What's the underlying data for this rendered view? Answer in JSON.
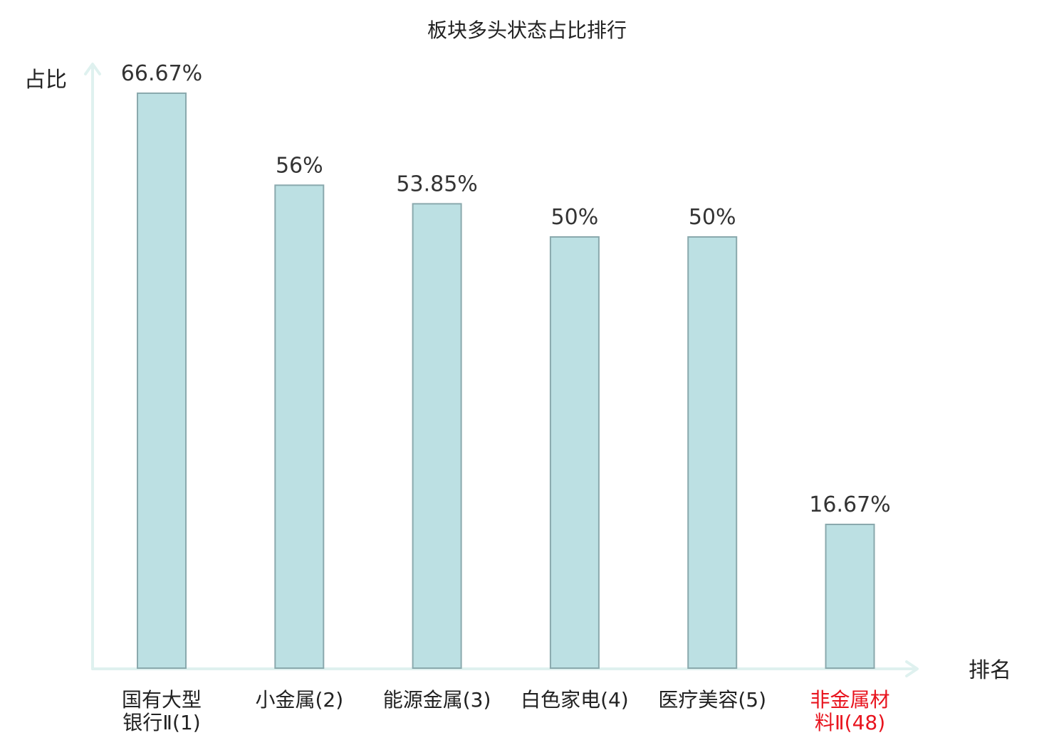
{
  "colors": {
    "bar_fill": "#bce0e3",
    "bar_stroke": "#8aa9ad",
    "axis": "#dff1ef",
    "text": "#222222",
    "highlight": "#e8141e"
  },
  "chart_data": {
    "type": "bar",
    "title": "板块多头状态占比排行",
    "ylabel": "占比",
    "xlabel": "排名",
    "ylim": [
      0,
      66.67
    ],
    "grid": false,
    "categories": [
      {
        "name_lines": [
          "国有大型",
          "银行Ⅱ"
        ],
        "rank": "(1)",
        "highlight": false
      },
      {
        "name_lines": [
          "小金属"
        ],
        "rank": "(2)",
        "highlight": false
      },
      {
        "name_lines": [
          "能源金属"
        ],
        "rank": "(3)",
        "highlight": false
      },
      {
        "name_lines": [
          "白色家电"
        ],
        "rank": "(4)",
        "highlight": false
      },
      {
        "name_lines": [
          "医疗美容"
        ],
        "rank": "(5)",
        "highlight": false
      },
      {
        "name_lines": [
          "非金属材",
          "料Ⅱ"
        ],
        "rank": "(48)",
        "highlight": true
      }
    ],
    "values": [
      66.67,
      56,
      53.85,
      50,
      50,
      16.67
    ],
    "value_labels": [
      "66.67%",
      "56%",
      "53.85%",
      "50%",
      "50%",
      "16.67%"
    ]
  }
}
